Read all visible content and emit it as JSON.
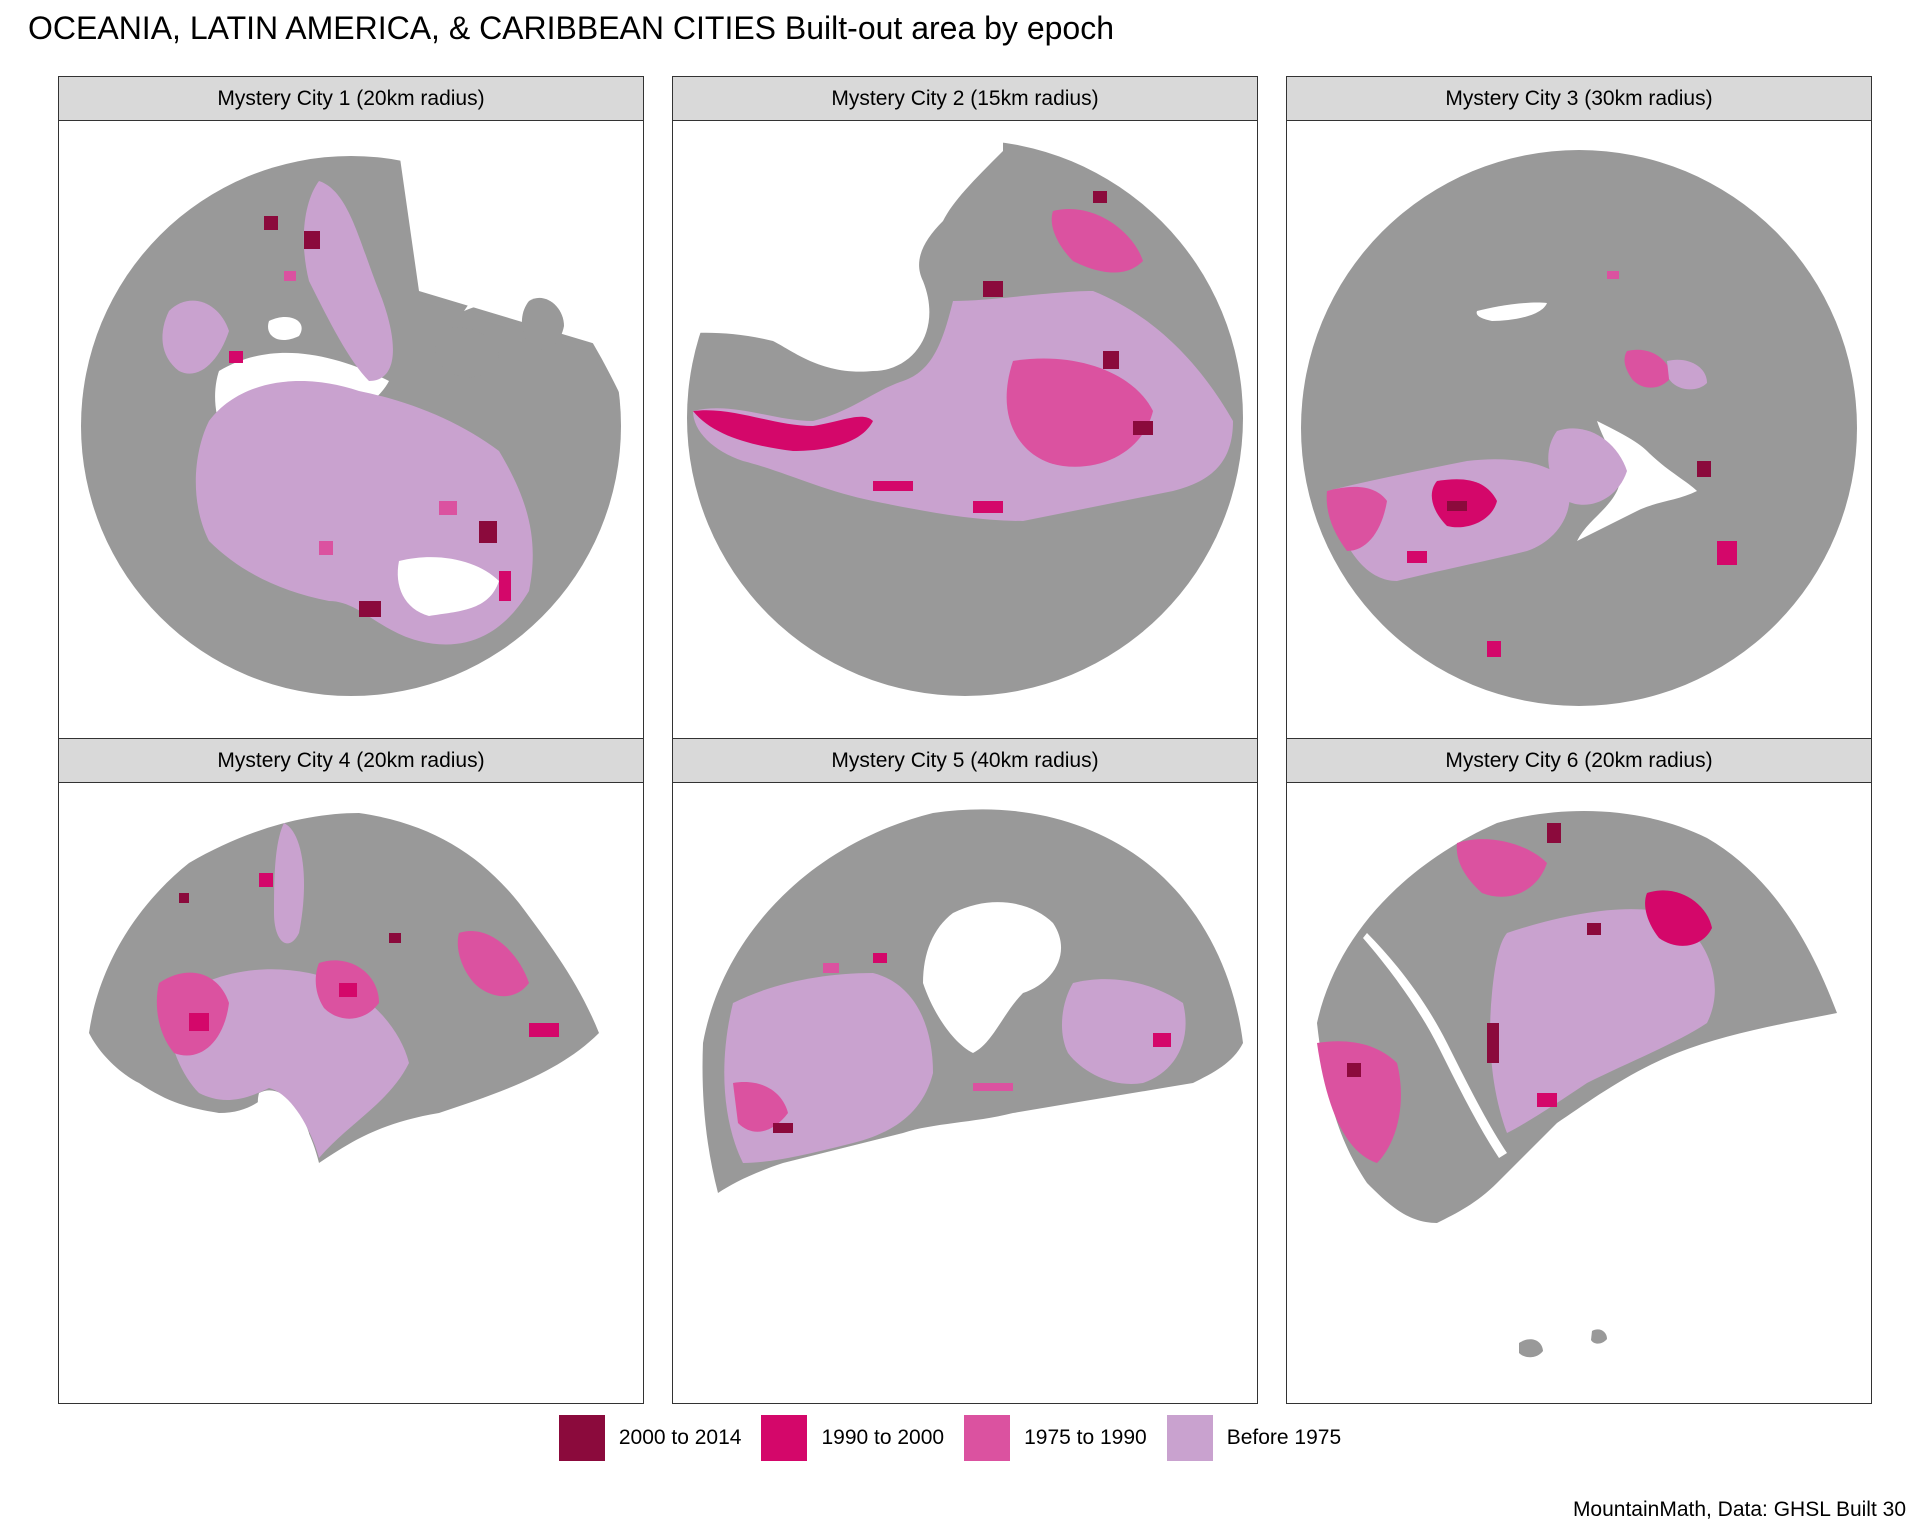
{
  "title": "OCEANIA, LATIN AMERICA, & CARIBBEAN CITIES Built-out area by epoch",
  "caption": "MountainMath, Data: GHSL Built 30",
  "colors": {
    "land": "#999999",
    "water": "#ffffff",
    "e2000_2014": "#8b0a3c",
    "e1990_2000": "#d4076a",
    "e1975_1990": "#db52a0",
    "before1975": "#c9a2cf"
  },
  "legend": [
    {
      "label": "2000 to 2014",
      "color": "#8b0a3c"
    },
    {
      "label": "1990 to 2000",
      "color": "#d4076a"
    },
    {
      "label": "1975 to 1990",
      "color": "#db52a0"
    },
    {
      "label": "Before 1975",
      "color": "#c9a2cf"
    }
  ],
  "panels": [
    {
      "label": "Mystery City 1 (20km radius)"
    },
    {
      "label": "Mystery City 2 (15km radius)"
    },
    {
      "label": "Mystery City 3 (30km radius)"
    },
    {
      "label": "Mystery City 4 (20km radius)"
    },
    {
      "label": "Mystery City 5 (40km radius)"
    },
    {
      "label": "Mystery City 6 (20km radius)"
    }
  ]
}
